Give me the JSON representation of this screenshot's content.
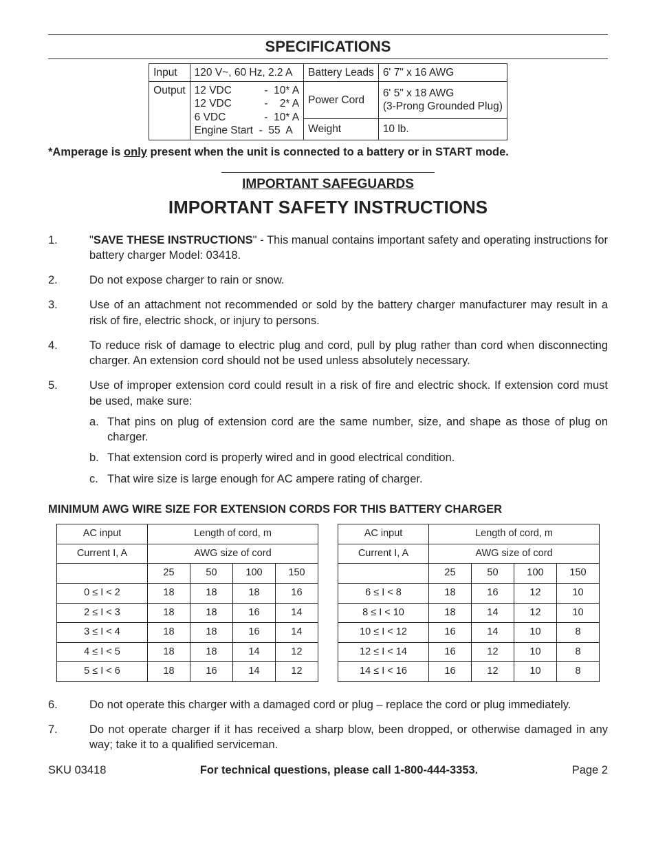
{
  "headings": {
    "specs": "SPECIFICATIONS",
    "safeguards": "IMPORTANT SAFEGUARDS",
    "safety": "IMPORTANT SAFETY INSTRUCTIONS",
    "awg": "MINIMUM AWG WIRE SIZE FOR EXTENSION CORDS FOR THIS BATTERY CHARGER"
  },
  "spec_table": {
    "r0c0": "Input",
    "r0c1": "120 V~, 60 Hz, 2.2 A",
    "r0c2": "Battery Leads",
    "r0c3": "6' 7\" x 16 AWG",
    "r1c0": "Output",
    "r1c1": "12 VDC           -  10* A\n12 VDC           -    2* A\n6 VDC             -  10* A\nEngine Start  -  55  A",
    "r1c2": "Power Cord",
    "r1c3": "6' 5\" x 18 AWG\n(3-Prong Grounded Plug)",
    "r2c2": "Weight",
    "r2c3": "10 lb."
  },
  "amp_note_pre": "*Amperage is ",
  "amp_note_only": "only",
  "amp_note_post": " present when the unit is connected to a battery or in START mode.",
  "items": {
    "i1_bold": "SAVE THESE INSTRUCTIONS",
    "i1_rest": "\" - This manual contains important safety and operating instructions for battery charger Model: 03418.",
    "i2": "Do not expose charger to rain or snow.",
    "i3": "Use of an attachment not recommended or sold by the battery charger manufacturer may result in a risk of fire, electric shock, or injury to persons.",
    "i4": "To reduce risk of damage to electric plug and cord, pull by plug rather than cord when disconnecting charger.  An extension cord should not be used unless absolutely necessary.",
    "i5": "Use of improper extension cord could result in a risk of fire and electric shock.  If extension cord must be used, make sure:",
    "i5a": "That pins on plug of extension cord are the same number, size, and shape as those of plug on charger.",
    "i5b": "That extension cord is properly wired and in good electrical condition.",
    "i5c": "That wire size is large enough for AC ampere rating of charger.",
    "i6": "Do not operate this charger with a damaged cord or plug – replace the cord or plug immediately.",
    "i7": "Do not operate charger if it has received a sharp blow, been dropped, or otherwise damaged in any way; take it to a qualified serviceman."
  },
  "awg_tables": {
    "hdr_ac": "AC input",
    "hdr_len": "Length of cord, m",
    "hdr_cur": "Current I, A",
    "hdr_awg": "AWG size of cord",
    "cols": [
      "25",
      "50",
      "100",
      "150"
    ],
    "left": [
      [
        "0 ≤ I < 2",
        "18",
        "18",
        "18",
        "16"
      ],
      [
        "2 ≤ I < 3",
        "18",
        "18",
        "16",
        "14"
      ],
      [
        "3 ≤ I < 4",
        "18",
        "18",
        "16",
        "14"
      ],
      [
        "4 ≤ I < 5",
        "18",
        "18",
        "14",
        "12"
      ],
      [
        "5 ≤ I < 6",
        "18",
        "16",
        "14",
        "12"
      ]
    ],
    "right": [
      [
        "6 ≤ I < 8",
        "18",
        "16",
        "12",
        "10"
      ],
      [
        "8 ≤ I < 10",
        "18",
        "14",
        "12",
        "10"
      ],
      [
        "10 ≤ I < 12",
        "16",
        "14",
        "10",
        "8"
      ],
      [
        "12 ≤ I < 14",
        "16",
        "12",
        "10",
        "8"
      ],
      [
        "14 ≤ I < 16",
        "16",
        "12",
        "10",
        "8"
      ]
    ]
  },
  "footer": {
    "sku": "SKU 03418",
    "mid": "For technical questions, please call 1-800-444-3353.",
    "page": "Page 2"
  },
  "colors": {
    "text": "#232323",
    "border": "#232323",
    "background": "#ffffff"
  }
}
